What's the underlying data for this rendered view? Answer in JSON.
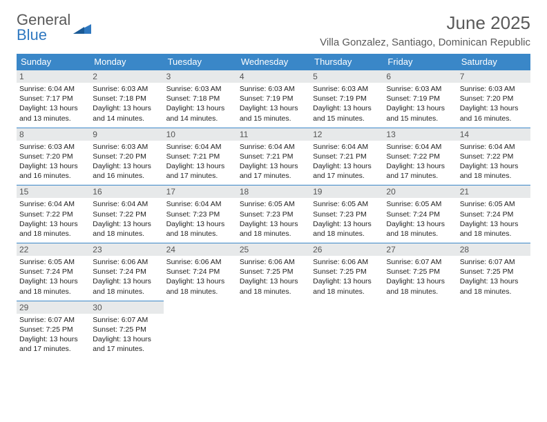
{
  "brand": {
    "line1": "General",
    "line2": "Blue"
  },
  "header": {
    "month_title": "June 2025",
    "location": "Villa Gonzalez, Santiago, Dominican Republic"
  },
  "colors": {
    "header_bg": "#3a87c8",
    "header_text": "#ffffff",
    "daynum_bg": "#e7e9ea",
    "daynum_border": "#3a87c8",
    "text": "#222222",
    "muted": "#595959"
  },
  "weekdays": [
    "Sunday",
    "Monday",
    "Tuesday",
    "Wednesday",
    "Thursday",
    "Friday",
    "Saturday"
  ],
  "weeks": [
    [
      {
        "n": "1",
        "sr": "6:04 AM",
        "ss": "7:17 PM",
        "d1": "13 hours",
        "d2": "13 minutes"
      },
      {
        "n": "2",
        "sr": "6:03 AM",
        "ss": "7:18 PM",
        "d1": "13 hours",
        "d2": "14 minutes"
      },
      {
        "n": "3",
        "sr": "6:03 AM",
        "ss": "7:18 PM",
        "d1": "13 hours",
        "d2": "14 minutes"
      },
      {
        "n": "4",
        "sr": "6:03 AM",
        "ss": "7:19 PM",
        "d1": "13 hours",
        "d2": "15 minutes"
      },
      {
        "n": "5",
        "sr": "6:03 AM",
        "ss": "7:19 PM",
        "d1": "13 hours",
        "d2": "15 minutes"
      },
      {
        "n": "6",
        "sr": "6:03 AM",
        "ss": "7:19 PM",
        "d1": "13 hours",
        "d2": "15 minutes"
      },
      {
        "n": "7",
        "sr": "6:03 AM",
        "ss": "7:20 PM",
        "d1": "13 hours",
        "d2": "16 minutes"
      }
    ],
    [
      {
        "n": "8",
        "sr": "6:03 AM",
        "ss": "7:20 PM",
        "d1": "13 hours",
        "d2": "16 minutes"
      },
      {
        "n": "9",
        "sr": "6:03 AM",
        "ss": "7:20 PM",
        "d1": "13 hours",
        "d2": "16 minutes"
      },
      {
        "n": "10",
        "sr": "6:04 AM",
        "ss": "7:21 PM",
        "d1": "13 hours",
        "d2": "17 minutes"
      },
      {
        "n": "11",
        "sr": "6:04 AM",
        "ss": "7:21 PM",
        "d1": "13 hours",
        "d2": "17 minutes"
      },
      {
        "n": "12",
        "sr": "6:04 AM",
        "ss": "7:21 PM",
        "d1": "13 hours",
        "d2": "17 minutes"
      },
      {
        "n": "13",
        "sr": "6:04 AM",
        "ss": "7:22 PM",
        "d1": "13 hours",
        "d2": "17 minutes"
      },
      {
        "n": "14",
        "sr": "6:04 AM",
        "ss": "7:22 PM",
        "d1": "13 hours",
        "d2": "18 minutes"
      }
    ],
    [
      {
        "n": "15",
        "sr": "6:04 AM",
        "ss": "7:22 PM",
        "d1": "13 hours",
        "d2": "18 minutes"
      },
      {
        "n": "16",
        "sr": "6:04 AM",
        "ss": "7:22 PM",
        "d1": "13 hours",
        "d2": "18 minutes"
      },
      {
        "n": "17",
        "sr": "6:04 AM",
        "ss": "7:23 PM",
        "d1": "13 hours",
        "d2": "18 minutes"
      },
      {
        "n": "18",
        "sr": "6:05 AM",
        "ss": "7:23 PM",
        "d1": "13 hours",
        "d2": "18 minutes"
      },
      {
        "n": "19",
        "sr": "6:05 AM",
        "ss": "7:23 PM",
        "d1": "13 hours",
        "d2": "18 minutes"
      },
      {
        "n": "20",
        "sr": "6:05 AM",
        "ss": "7:24 PM",
        "d1": "13 hours",
        "d2": "18 minutes"
      },
      {
        "n": "21",
        "sr": "6:05 AM",
        "ss": "7:24 PM",
        "d1": "13 hours",
        "d2": "18 minutes"
      }
    ],
    [
      {
        "n": "22",
        "sr": "6:05 AM",
        "ss": "7:24 PM",
        "d1": "13 hours",
        "d2": "18 minutes"
      },
      {
        "n": "23",
        "sr": "6:06 AM",
        "ss": "7:24 PM",
        "d1": "13 hours",
        "d2": "18 minutes"
      },
      {
        "n": "24",
        "sr": "6:06 AM",
        "ss": "7:24 PM",
        "d1": "13 hours",
        "d2": "18 minutes"
      },
      {
        "n": "25",
        "sr": "6:06 AM",
        "ss": "7:25 PM",
        "d1": "13 hours",
        "d2": "18 minutes"
      },
      {
        "n": "26",
        "sr": "6:06 AM",
        "ss": "7:25 PM",
        "d1": "13 hours",
        "d2": "18 minutes"
      },
      {
        "n": "27",
        "sr": "6:07 AM",
        "ss": "7:25 PM",
        "d1": "13 hours",
        "d2": "18 minutes"
      },
      {
        "n": "28",
        "sr": "6:07 AM",
        "ss": "7:25 PM",
        "d1": "13 hours",
        "d2": "18 minutes"
      }
    ],
    [
      {
        "n": "29",
        "sr": "6:07 AM",
        "ss": "7:25 PM",
        "d1": "13 hours",
        "d2": "17 minutes"
      },
      {
        "n": "30",
        "sr": "6:07 AM",
        "ss": "7:25 PM",
        "d1": "13 hours",
        "d2": "17 minutes"
      },
      {
        "empty": true
      },
      {
        "empty": true
      },
      {
        "empty": true
      },
      {
        "empty": true
      },
      {
        "empty": true
      }
    ]
  ],
  "labels": {
    "sunrise": "Sunrise:",
    "sunset": "Sunset:",
    "daylight": "Daylight:",
    "and": "and"
  }
}
